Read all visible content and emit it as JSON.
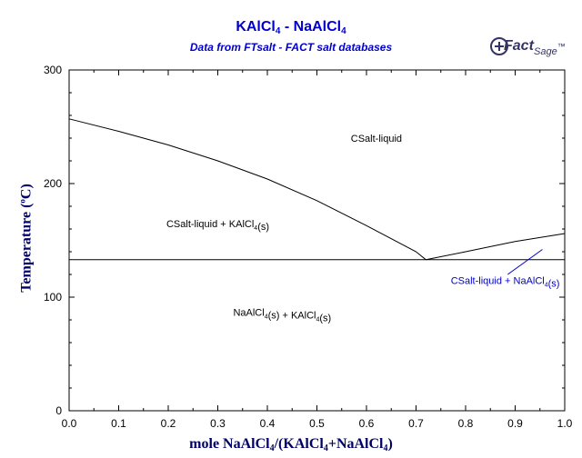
{
  "title_parts": {
    "main": "KAlCl",
    "sub": "4",
    "mid": " - NaAlCl",
    "sub2": "4"
  },
  "subtitle": "Data from FTsalt - FACT salt databases",
  "logo": {
    "mark": "Fact",
    "sage": "Sage",
    "tm": "™"
  },
  "ylabel_parts": {
    "a": "Temperature (",
    "sup": "o",
    "b": "C)"
  },
  "xlabel_parts": {
    "a": "mole NaAlCl",
    "s1": "4",
    "b": "/(KAlCl",
    "s2": "4",
    "c": "+NaAlCl",
    "s3": "4",
    "d": ")"
  },
  "colors": {
    "title": "#0000cc",
    "axis_label": "#000066",
    "line": "#000000",
    "annotation": "#0000cc"
  },
  "chart_data": {
    "type": "line",
    "xlim": [
      0.0,
      1.0
    ],
    "ylim": [
      0,
      300
    ],
    "x_ticks": [
      "0.0",
      "0.1",
      "0.2",
      "0.3",
      "0.4",
      "0.5",
      "0.6",
      "0.7",
      "0.8",
      "0.9",
      "1.0"
    ],
    "y_ticks": [
      "0",
      "100",
      "200",
      "300"
    ],
    "grid": false,
    "series": [
      {
        "x": [
          0.0,
          0.1,
          0.2,
          0.3,
          0.4,
          0.5,
          0.6,
          0.7,
          0.72
        ],
        "y": [
          257,
          246,
          234,
          220,
          204,
          185,
          163,
          140,
          133
        ]
      },
      {
        "x": [
          0.72,
          0.8,
          0.9,
          1.0
        ],
        "y": [
          133,
          140,
          149,
          156
        ]
      },
      {
        "x": [
          0.0,
          1.0
        ],
        "y": [
          133,
          133
        ]
      }
    ],
    "labels": [
      {
        "text": "CSalt-liquid",
        "x": 0.62,
        "y": 240
      },
      {
        "text": "CSalt-liquid + KAlCl",
        "sub": "4",
        "tail": "(s)",
        "x": 0.3,
        "y": 165
      },
      {
        "text": "CSalt-liquid + NaAlCl",
        "sub": "4",
        "tail": "(s)",
        "x": 0.88,
        "y": 115
      },
      {
        "text": "NaAlCl",
        "sub": "4",
        "tail": "(s) + KAlCl",
        "sub2": "4",
        "tail2": "(s)",
        "x": 0.43,
        "y": 87
      }
    ],
    "pointer": {
      "x1": 0.955,
      "y1": 142,
      "x2": 0.885,
      "y2": 120
    }
  }
}
